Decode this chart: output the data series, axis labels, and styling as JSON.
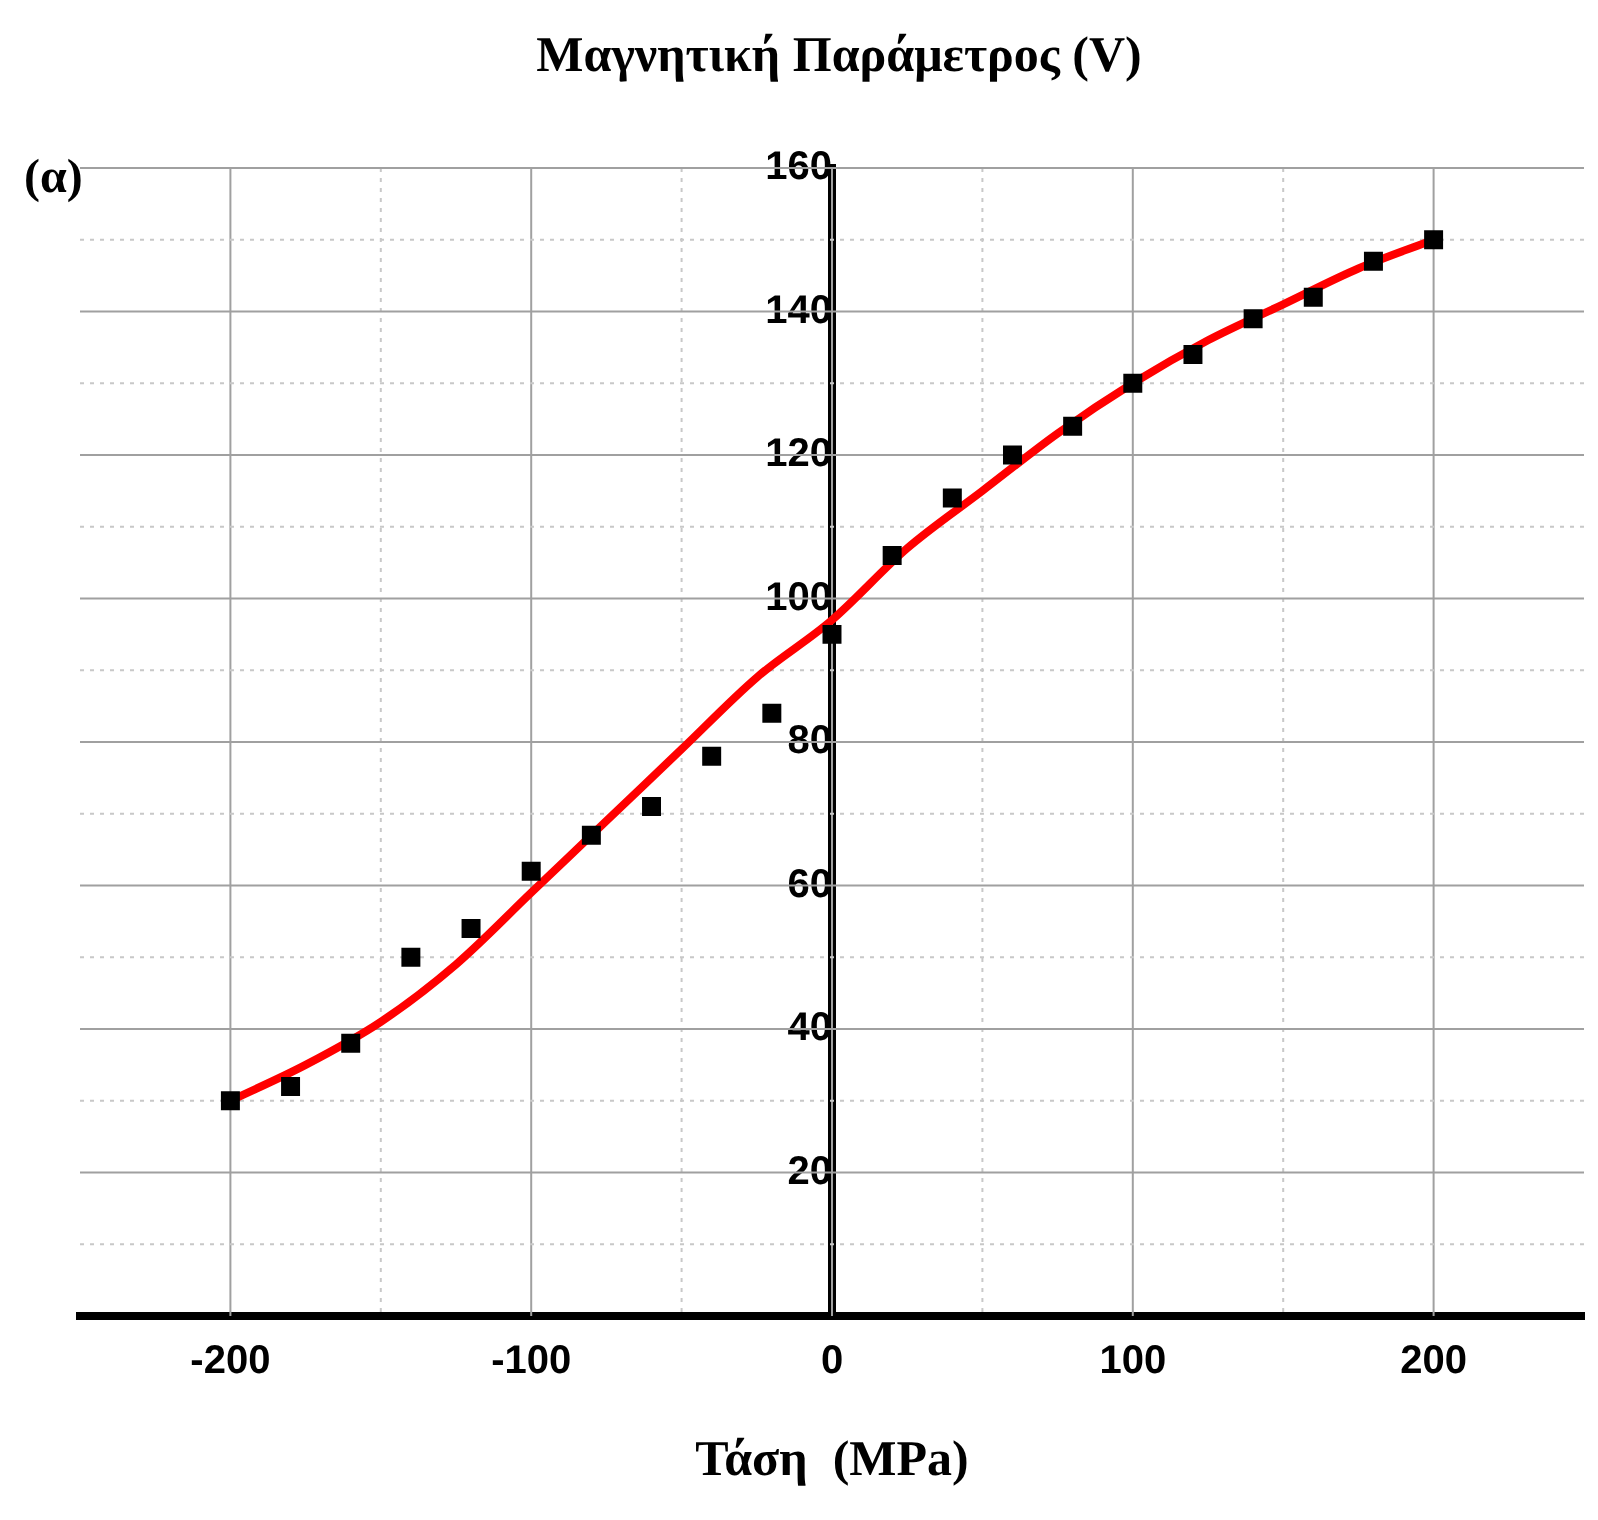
{
  "chart_data": {
    "type": "scatter",
    "title": "Μαγνητική Παράμετρος (V)",
    "xlabel": "Τάση  (MPa)",
    "annotations": [
      "(α)"
    ],
    "xlim": [
      -250,
      250
    ],
    "ylim": [
      0,
      160
    ],
    "xticks": [
      -200,
      {
        "value": -150,
        "label": null
      },
      -100,
      {
        "value": -50,
        "label": null
      },
      0,
      {
        "value": 50,
        "label": null
      },
      100,
      {
        "value": 150,
        "label": null
      },
      200
    ],
    "yticks": [
      {
        "value": 10,
        "label": null
      },
      20,
      {
        "value": 30,
        "label": null
      },
      40,
      {
        "value": 50,
        "label": null
      },
      60,
      {
        "value": 70,
        "label": null
      },
      80,
      {
        "value": 90,
        "label": null
      },
      100,
      {
        "value": 110,
        "label": null
      },
      120,
      {
        "value": 130,
        "label": null
      },
      140,
      {
        "value": 150,
        "label": null
      },
      160
    ],
    "grid": true,
    "legend": false,
    "series": [
      {
        "type": "scatter",
        "marker": "square",
        "color": "#000000",
        "x": [
          -200,
          -180,
          -160,
          -140,
          -120,
          -100,
          -80,
          -60,
          -40,
          -20,
          0,
          20,
          40,
          60,
          80,
          100,
          120,
          140,
          160,
          180,
          200
        ],
        "values": [
          30,
          32,
          38,
          50,
          54,
          62,
          67,
          71,
          78,
          84,
          95,
          106,
          114,
          120,
          124,
          130,
          134,
          139,
          142,
          147,
          150
        ]
      },
      {
        "type": "line",
        "marker": "none",
        "color": "#ff0000",
        "x": [
          -200,
          -175,
          -150,
          -125,
          -100,
          -75,
          -50,
          -25,
          0,
          25,
          50,
          75,
          100,
          125,
          150,
          175,
          200
        ],
        "values": [
          30,
          35,
          41,
          49,
          59,
          69,
          79,
          89,
          97,
          107,
          115,
          123,
          130,
          136,
          141,
          146,
          150
        ]
      }
    ]
  }
}
